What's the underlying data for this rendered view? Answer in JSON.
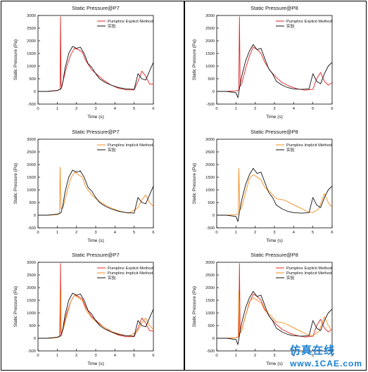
{
  "colors": {
    "explicit": "#e02020",
    "implicit": "#f28c1e",
    "experiment": "#111111",
    "frame": "#000000",
    "watermark": "#1a7fd2"
  },
  "watermark": {
    "text": "仿真在线",
    "url": "www.1CAE.com"
  },
  "chart_data": [
    {
      "type": "line",
      "title": "Static Pressure@P7",
      "xlabel": "Time (s)",
      "ylabel": "Static Pressure (Pa)",
      "xlim": [
        0,
        6
      ],
      "ylim": [
        -500,
        3000
      ],
      "xticks": [
        "0",
        "1",
        "2",
        "3",
        "4",
        "5",
        "6"
      ],
      "yticks": [
        "-500",
        "0",
        "500",
        "1000",
        "1500",
        "2000",
        "2500",
        "3000"
      ],
      "legend_position": "top-right",
      "series": [
        {
          "name": "Pumplinx Explicit Method",
          "color_key": "explicit",
          "x": [
            0,
            0.5,
            1.0,
            1.15,
            1.17,
            1.2,
            1.23,
            1.3,
            1.5,
            1.7,
            1.9,
            2.1,
            2.3,
            2.5,
            2.8,
            3.1,
            3.4,
            3.8,
            4.2,
            4.6,
            5.0,
            5.2,
            5.4,
            5.6,
            5.8,
            6.0
          ],
          "y": [
            0,
            0,
            30,
            80,
            2950,
            300,
            150,
            400,
            1000,
            1450,
            1700,
            1650,
            1550,
            1200,
            850,
            650,
            450,
            250,
            120,
            60,
            60,
            400,
            800,
            600,
            300,
            280
          ]
        },
        {
          "name": "实验",
          "color_key": "experiment",
          "x": [
            0,
            0.5,
            1.0,
            1.2,
            1.3,
            1.4,
            1.6,
            1.8,
            2.0,
            2.2,
            2.4,
            2.6,
            2.8,
            3.0,
            3.2,
            3.5,
            3.8,
            4.2,
            4.6,
            5.0,
            5.2,
            5.4,
            5.6,
            5.8,
            6.0
          ],
          "y": [
            0,
            0,
            40,
            100,
            400,
            900,
            1500,
            1780,
            1700,
            1750,
            1500,
            1100,
            950,
            700,
            500,
            350,
            250,
            150,
            100,
            80,
            700,
            500,
            450,
            800,
            1150
          ]
        }
      ]
    },
    {
      "type": "line",
      "title": "Static Pressure@P8",
      "xlabel": "Time (s)",
      "ylabel": "Static Pressure (Pa)",
      "xlim": [
        0,
        6
      ],
      "ylim": [
        -500,
        3000
      ],
      "xticks": [
        "0",
        "1",
        "2",
        "3",
        "4",
        "5",
        "6"
      ],
      "yticks": [
        "-500",
        "0",
        "500",
        "1000",
        "1500",
        "2000",
        "2500",
        "3000"
      ],
      "legend_position": "top-right",
      "series": [
        {
          "name": "Pumplinx Explicit Method",
          "color_key": "explicit",
          "x": [
            0,
            0.5,
            1.0,
            1.15,
            1.18,
            1.22,
            1.3,
            1.5,
            1.7,
            1.9,
            2.1,
            2.3,
            2.5,
            2.8,
            3.1,
            3.4,
            3.8,
            4.2,
            4.6,
            5.0,
            5.2,
            5.4,
            5.6,
            5.8,
            6.0
          ],
          "y": [
            0,
            0,
            20,
            60,
            2950,
            200,
            300,
            900,
            1400,
            1750,
            1650,
            1500,
            1150,
            800,
            550,
            350,
            200,
            100,
            50,
            80,
            500,
            750,
            400,
            250,
            350
          ]
        },
        {
          "name": "实验",
          "color_key": "experiment",
          "x": [
            0,
            0.5,
            1.0,
            1.1,
            1.2,
            1.3,
            1.5,
            1.7,
            1.9,
            2.1,
            2.3,
            2.5,
            2.7,
            2.9,
            3.1,
            3.4,
            3.7,
            4.0,
            4.4,
            4.8,
            5.0,
            5.2,
            5.4,
            5.6,
            5.8,
            6.0
          ],
          "y": [
            0,
            0,
            -50,
            -250,
            200,
            600,
            1200,
            1600,
            1850,
            1650,
            1700,
            1300,
            900,
            700,
            400,
            250,
            150,
            100,
            80,
            100,
            700,
            400,
            300,
            700,
            1000,
            1150
          ]
        }
      ]
    },
    {
      "type": "line",
      "title": "Static Pressure@P7",
      "xlabel": "Time (s)",
      "ylabel": "Static Pressure (Pa)",
      "xlim": [
        0,
        6
      ],
      "ylim": [
        -500,
        3000
      ],
      "xticks": [
        "0",
        "1",
        "2",
        "3",
        "4",
        "5",
        "6"
      ],
      "yticks": [
        "-500",
        "0",
        "500",
        "1000",
        "1500",
        "2000",
        "2500",
        "3000"
      ],
      "legend_position": "top-right",
      "series": [
        {
          "name": "Pumplinx Implicit Method",
          "color_key": "implicit",
          "x": [
            0,
            0.5,
            1.0,
            1.12,
            1.15,
            1.2,
            1.3,
            1.5,
            1.7,
            1.9,
            2.1,
            2.3,
            2.5,
            2.8,
            3.1,
            3.5,
            3.9,
            4.3,
            4.7,
            5.0,
            5.2,
            5.4,
            5.6,
            5.8,
            6.0
          ],
          "y": [
            0,
            0,
            20,
            60,
            1900,
            250,
            300,
            900,
            1450,
            1700,
            1600,
            1500,
            1100,
            800,
            600,
            400,
            250,
            150,
            80,
            200,
            300,
            600,
            800,
            500,
            350
          ]
        },
        {
          "name": "实验",
          "color_key": "experiment",
          "x": [
            0,
            0.5,
            1.0,
            1.2,
            1.3,
            1.4,
            1.6,
            1.8,
            2.0,
            2.2,
            2.4,
            2.6,
            2.8,
            3.0,
            3.2,
            3.5,
            3.8,
            4.2,
            4.6,
            5.0,
            5.2,
            5.4,
            5.6,
            5.8,
            6.0
          ],
          "y": [
            0,
            0,
            40,
            100,
            400,
            900,
            1500,
            1780,
            1700,
            1750,
            1500,
            1100,
            950,
            700,
            500,
            350,
            250,
            150,
            100,
            80,
            700,
            500,
            450,
            800,
            1150
          ]
        }
      ]
    },
    {
      "type": "line",
      "title": "Static Pressure@P8",
      "xlabel": "Time (s)",
      "ylabel": "Static Pressure (Pa)",
      "xlim": [
        0,
        6
      ],
      "ylim": [
        -500,
        3000
      ],
      "xticks": [
        "0",
        "1",
        "2",
        "3",
        "4",
        "5",
        "6"
      ],
      "yticks": [
        "-500",
        "0",
        "500",
        "1000",
        "1500",
        "2000",
        "2500",
        "3000"
      ],
      "legend_position": "top-right",
      "series": [
        {
          "name": "Pumplinx Implicit Method",
          "color_key": "implicit",
          "x": [
            0,
            0.5,
            1.0,
            1.12,
            1.15,
            1.2,
            1.3,
            1.5,
            1.7,
            1.9,
            2.1,
            2.3,
            2.5,
            2.8,
            3.1,
            3.5,
            3.9,
            4.3,
            4.7,
            5.0,
            5.3,
            5.6,
            5.8,
            6.0
          ],
          "y": [
            0,
            0,
            20,
            60,
            1850,
            200,
            300,
            900,
            1450,
            1600,
            1500,
            1400,
            1100,
            900,
            650,
            600,
            450,
            300,
            150,
            100,
            250,
            850,
            500,
            300
          ]
        },
        {
          "name": "实验",
          "color_key": "experiment",
          "x": [
            0,
            0.5,
            1.0,
            1.1,
            1.2,
            1.3,
            1.5,
            1.7,
            1.9,
            2.1,
            2.3,
            2.5,
            2.7,
            2.9,
            3.1,
            3.4,
            3.7,
            4.0,
            4.4,
            4.8,
            5.0,
            5.2,
            5.4,
            5.6,
            5.8,
            6.0
          ],
          "y": [
            0,
            0,
            -50,
            -250,
            200,
            600,
            1200,
            1600,
            1850,
            1650,
            1700,
            1300,
            900,
            700,
            400,
            250,
            150,
            100,
            80,
            100,
            700,
            400,
            300,
            700,
            1000,
            1150
          ]
        }
      ]
    },
    {
      "type": "line",
      "title": "Static Pressure@P7",
      "xlabel": "Time (s)",
      "ylabel": "Static Pressure (Pa)",
      "xlim": [
        0,
        6
      ],
      "ylim": [
        -500,
        3000
      ],
      "xticks": [
        "0",
        "1",
        "2",
        "3",
        "4",
        "5",
        "6"
      ],
      "yticks": [
        "-500",
        "0",
        "500",
        "1000",
        "1500",
        "2000",
        "2500",
        "3000"
      ],
      "legend_position": "top-right",
      "series": [
        {
          "name": "Pumplinx Explicit Method",
          "color_key": "explicit",
          "x": [
            0,
            0.5,
            1.0,
            1.15,
            1.17,
            1.2,
            1.23,
            1.3,
            1.5,
            1.7,
            1.9,
            2.1,
            2.3,
            2.5,
            2.8,
            3.1,
            3.4,
            3.8,
            4.2,
            4.6,
            5.0,
            5.2,
            5.4,
            5.6,
            5.8,
            6.0
          ],
          "y": [
            0,
            0,
            30,
            80,
            2950,
            300,
            150,
            400,
            1000,
            1450,
            1700,
            1650,
            1550,
            1200,
            850,
            650,
            450,
            250,
            120,
            60,
            60,
            400,
            800,
            600,
            300,
            280
          ]
        },
        {
          "name": "Pumplinx Implicit Method",
          "color_key": "implicit",
          "x": [
            0,
            0.5,
            1.0,
            1.12,
            1.15,
            1.2,
            1.3,
            1.5,
            1.7,
            1.9,
            2.1,
            2.3,
            2.5,
            2.8,
            3.1,
            3.5,
            3.9,
            4.3,
            4.7,
            5.0,
            5.2,
            5.4,
            5.6,
            5.8,
            6.0
          ],
          "y": [
            0,
            0,
            20,
            60,
            1900,
            250,
            300,
            900,
            1450,
            1700,
            1600,
            1500,
            1100,
            800,
            600,
            400,
            250,
            150,
            80,
            200,
            300,
            600,
            800,
            500,
            350
          ]
        },
        {
          "name": "实验",
          "color_key": "experiment",
          "x": [
            0,
            0.5,
            1.0,
            1.2,
            1.3,
            1.4,
            1.6,
            1.8,
            2.0,
            2.2,
            2.4,
            2.6,
            2.8,
            3.0,
            3.2,
            3.5,
            3.8,
            4.2,
            4.6,
            5.0,
            5.2,
            5.4,
            5.6,
            5.8,
            6.0
          ],
          "y": [
            0,
            0,
            40,
            100,
            400,
            900,
            1500,
            1780,
            1700,
            1750,
            1500,
            1100,
            950,
            700,
            500,
            350,
            250,
            150,
            100,
            80,
            700,
            500,
            450,
            800,
            1150
          ]
        }
      ]
    },
    {
      "type": "line",
      "title": "Static Pressure@P8",
      "xlabel": "Time (s)",
      "ylabel": "Static Pressure (Pa)",
      "xlim": [
        0,
        6
      ],
      "ylim": [
        -500,
        3000
      ],
      "xticks": [
        "0",
        "1",
        "2",
        "3",
        "4",
        "5",
        "6"
      ],
      "yticks": [
        "-500",
        "0",
        "500",
        "1000",
        "1500",
        "2000",
        "2500",
        "3000"
      ],
      "legend_position": "top-right",
      "series": [
        {
          "name": "Pumplinx Explicit Method",
          "color_key": "explicit",
          "x": [
            0,
            0.5,
            1.0,
            1.15,
            1.18,
            1.22,
            1.3,
            1.5,
            1.7,
            1.9,
            2.1,
            2.3,
            2.5,
            2.8,
            3.1,
            3.4,
            3.8,
            4.2,
            4.6,
            5.0,
            5.2,
            5.4,
            5.6,
            5.8,
            6.0
          ],
          "y": [
            0,
            0,
            20,
            60,
            2950,
            200,
            300,
            900,
            1400,
            1750,
            1650,
            1500,
            1150,
            800,
            550,
            350,
            200,
            100,
            50,
            80,
            500,
            750,
            400,
            250,
            350
          ]
        },
        {
          "name": "Pumplinx Implicit Method",
          "color_key": "implicit",
          "x": [
            0,
            0.5,
            1.0,
            1.12,
            1.15,
            1.2,
            1.3,
            1.5,
            1.7,
            1.9,
            2.1,
            2.3,
            2.5,
            2.8,
            3.1,
            3.5,
            3.9,
            4.3,
            4.7,
            5.0,
            5.3,
            5.6,
            5.8,
            6.0
          ],
          "y": [
            0,
            0,
            20,
            60,
            1850,
            200,
            300,
            900,
            1450,
            1600,
            1500,
            1400,
            1100,
            900,
            650,
            600,
            450,
            300,
            150,
            100,
            250,
            850,
            500,
            300
          ]
        },
        {
          "name": "实验",
          "color_key": "experiment",
          "x": [
            0,
            0.5,
            1.0,
            1.1,
            1.2,
            1.3,
            1.5,
            1.7,
            1.9,
            2.1,
            2.3,
            2.5,
            2.7,
            2.9,
            3.1,
            3.4,
            3.7,
            4.0,
            4.4,
            4.8,
            5.0,
            5.2,
            5.4,
            5.6,
            5.8,
            6.0
          ],
          "y": [
            0,
            0,
            -50,
            -250,
            200,
            600,
            1200,
            1600,
            1850,
            1650,
            1700,
            1300,
            900,
            700,
            400,
            250,
            150,
            100,
            80,
            100,
            700,
            400,
            300,
            700,
            1000,
            1150
          ]
        }
      ]
    }
  ]
}
